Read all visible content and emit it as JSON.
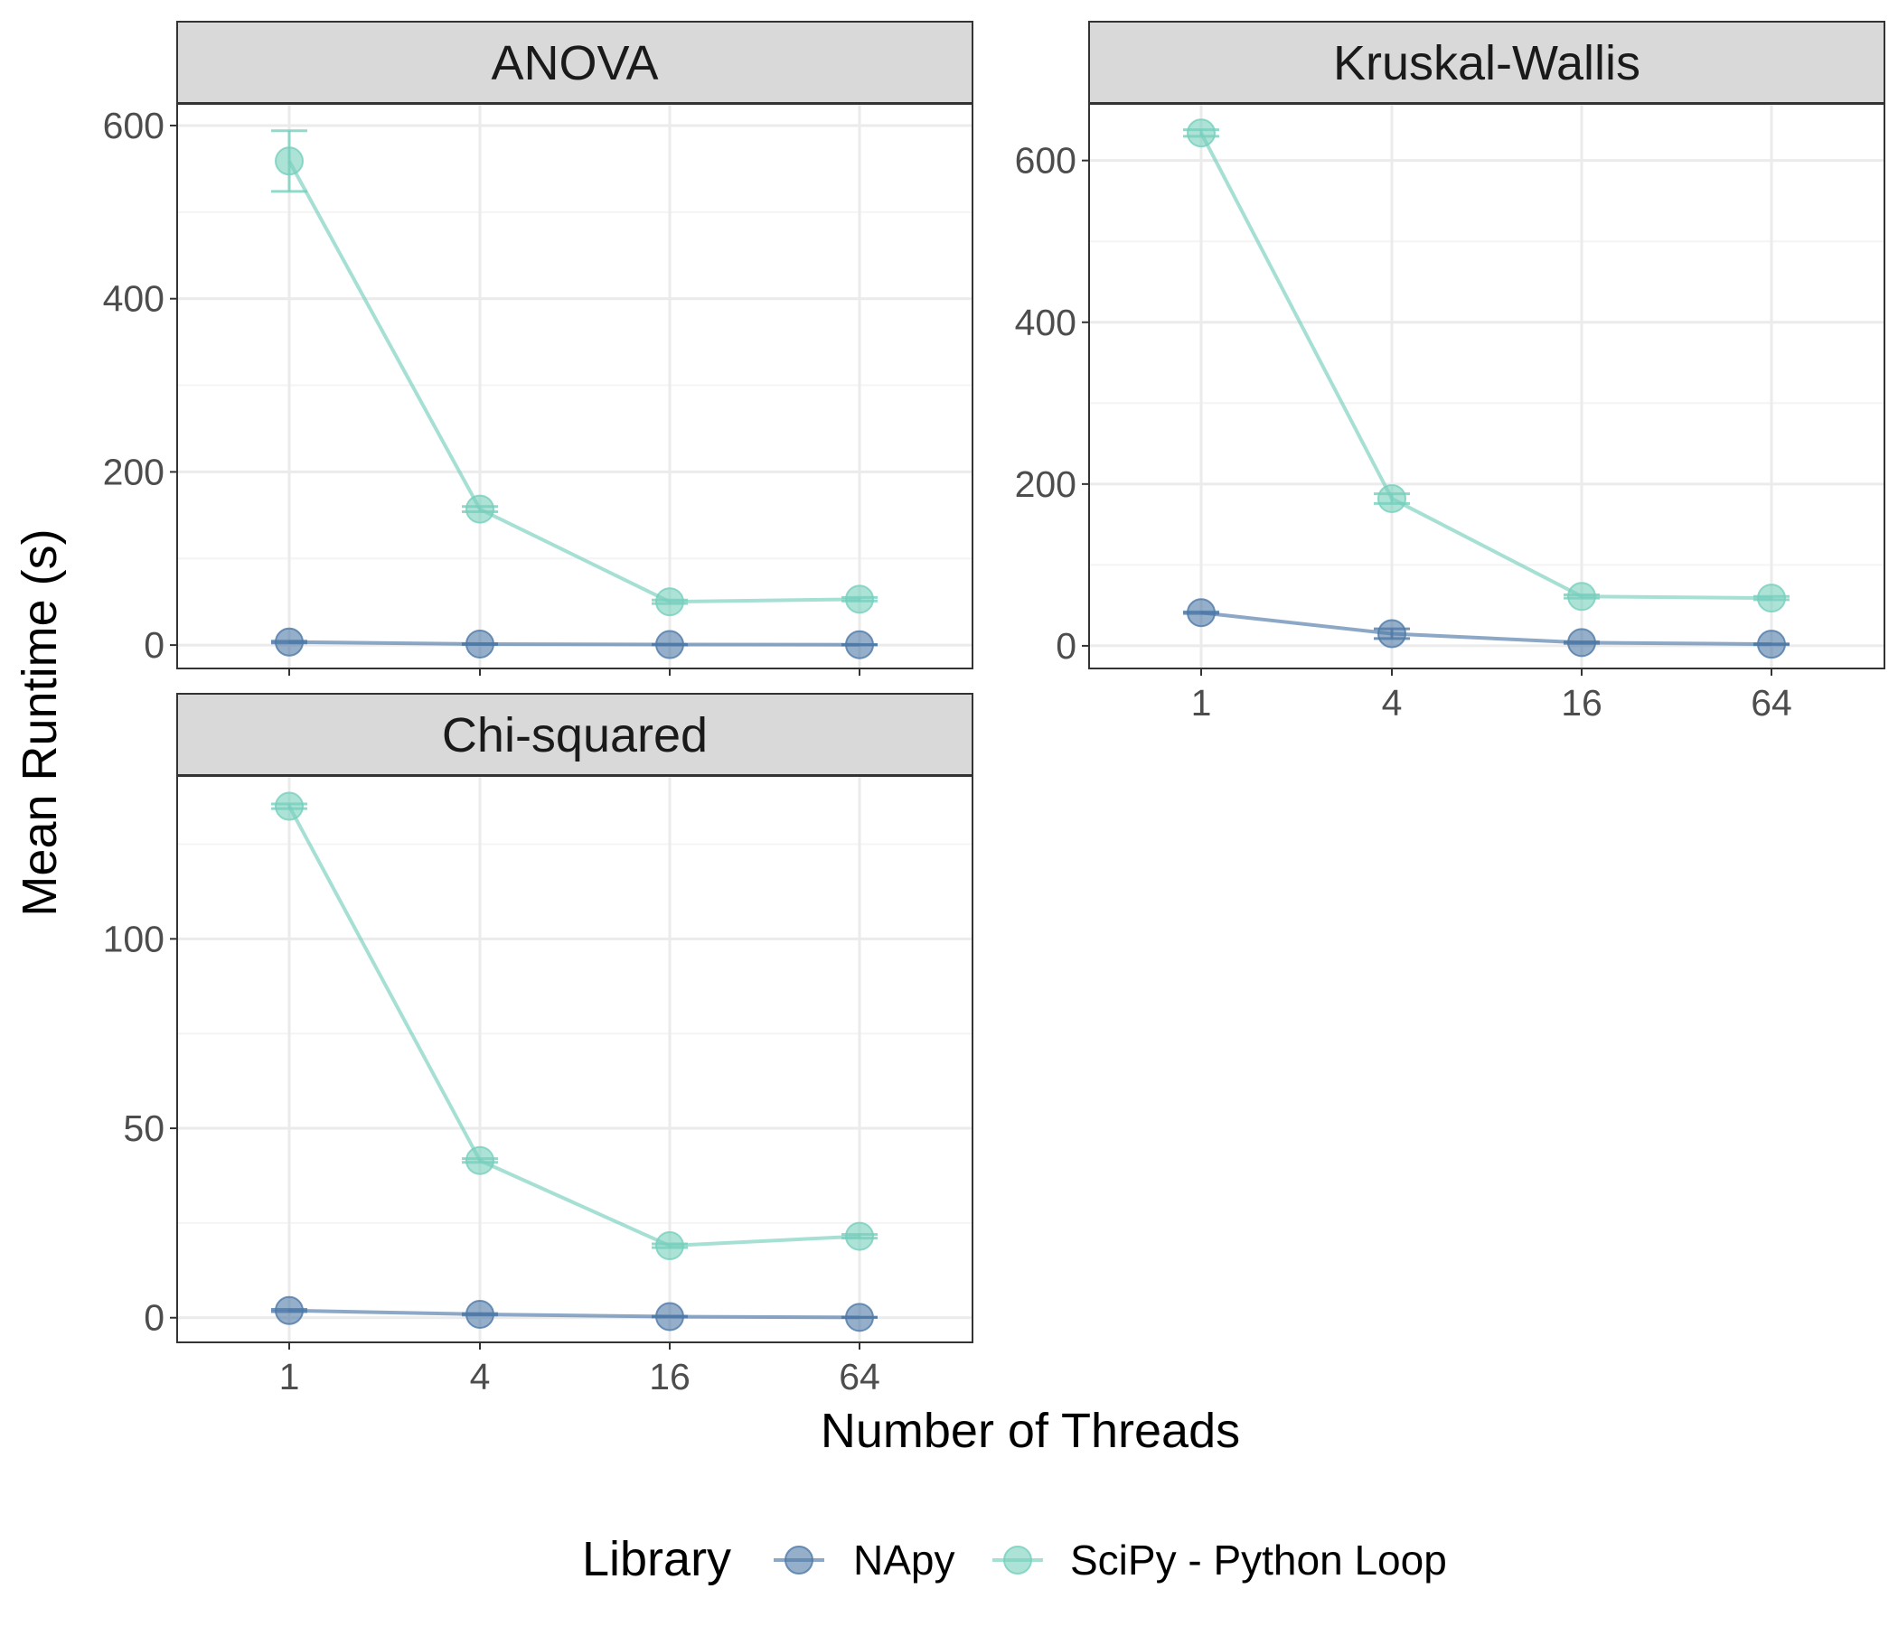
{
  "figure": {
    "xlabel": "Number of Threads",
    "ylabel": "Mean Runtime (s)"
  },
  "legend": {
    "title": "Library",
    "items": [
      {
        "name": "NApy",
        "color": "#4e79a7"
      },
      {
        "name": "SciPy - Python Loop",
        "color": "#76cfbd"
      }
    ]
  },
  "colors": {
    "napy": "#4e79a7",
    "scipy": "#76cfbd",
    "strip_bg": "#d9d9d9",
    "grid": "#ebebeb",
    "panel_border": "#333333"
  },
  "chart_data": [
    {
      "type": "line",
      "title": "ANOVA",
      "x": [
        1,
        4,
        16,
        64
      ],
      "x_tick_labels": [],
      "y_ticks": [
        0,
        200,
        400,
        600
      ],
      "ylim": [
        -27,
        625
      ],
      "grid": true,
      "series": [
        {
          "name": "NApy",
          "values": [
            3.5,
            1.2,
            0.6,
            0.4
          ],
          "error": [
            1.0,
            0.5,
            0.3,
            0.3
          ]
        },
        {
          "name": "SciPy - Python Loop",
          "values": [
            559,
            157,
            50,
            53
          ],
          "error": [
            35,
            3,
            2,
            2
          ]
        }
      ]
    },
    {
      "type": "line",
      "title": "Kruskal-Wallis",
      "x": [
        1,
        4,
        16,
        64
      ],
      "x_tick_labels": [
        "1",
        "4",
        "16",
        "64"
      ],
      "y_ticks": [
        0,
        200,
        400,
        600
      ],
      "ylim": [
        -28,
        670
      ],
      "grid": true,
      "series": [
        {
          "name": "NApy",
          "values": [
            41,
            15,
            4,
            2
          ],
          "error": [
            1,
            6,
            1,
            0.5
          ]
        },
        {
          "name": "SciPy - Python Loop",
          "values": [
            634,
            182,
            61,
            59
          ],
          "error": [
            4,
            6,
            2,
            2
          ]
        }
      ]
    },
    {
      "type": "line",
      "title": "Chi-squared",
      "x": [
        1,
        4,
        16,
        64
      ],
      "x_tick_labels": [
        "1",
        "4",
        "16",
        "64"
      ],
      "y_ticks": [
        0,
        50,
        100
      ],
      "ylim": [
        -6.5,
        143
      ],
      "grid": true,
      "series": [
        {
          "name": "NApy",
          "values": [
            1.9,
            0.9,
            0.3,
            0.1
          ],
          "error": [
            0.3,
            0.2,
            0.1,
            0.05
          ]
        },
        {
          "name": "SciPy - Python Loop",
          "values": [
            135,
            41.5,
            19,
            21.5
          ],
          "error": [
            0.6,
            0.5,
            0.5,
            0.5
          ]
        }
      ]
    }
  ]
}
